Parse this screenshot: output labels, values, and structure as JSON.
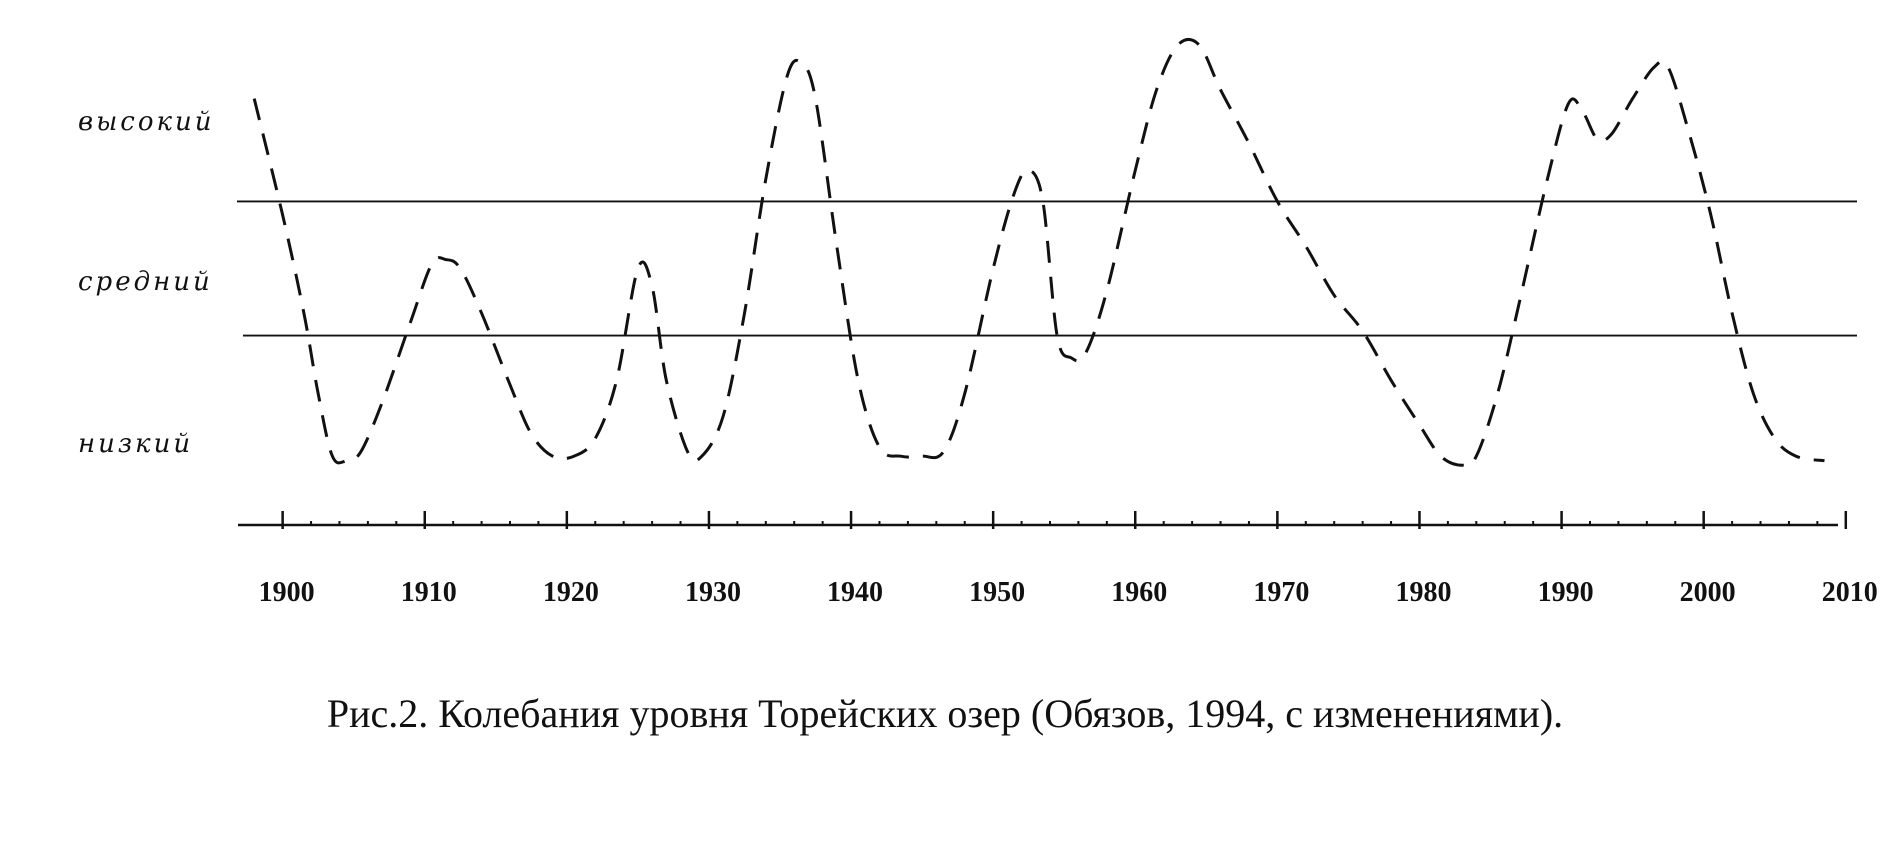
{
  "chart_data": {
    "type": "line",
    "title": "",
    "xlabel": "",
    "ylabel": "",
    "xlim": [
      1897,
      2011
    ],
    "ylim": [
      0,
      100
    ],
    "xticks": [
      1900,
      1910,
      1920,
      1930,
      1940,
      1950,
      1960,
      1970,
      1980,
      1990,
      2000,
      2010
    ],
    "level_bands": [
      {
        "label": "высокий"
      },
      {
        "label": "средний"
      },
      {
        "label": "низкий"
      }
    ],
    "band_boundaries": [
      65,
      35
    ],
    "grid": false,
    "legend": "none",
    "series": [
      {
        "line_style": "dashed",
        "color": "#111111",
        "points": [
          [
            1898,
            88
          ],
          [
            1900,
            62
          ],
          [
            1901.5,
            40
          ],
          [
            1902.5,
            22
          ],
          [
            1903.5,
            8
          ],
          [
            1904.5,
            7
          ],
          [
            1905.5,
            9
          ],
          [
            1907,
            20
          ],
          [
            1909,
            38
          ],
          [
            1910.5,
            51
          ],
          [
            1911.5,
            52
          ],
          [
            1912.5,
            50
          ],
          [
            1914,
            40
          ],
          [
            1916,
            24
          ],
          [
            1917.5,
            13
          ],
          [
            1919,
            8
          ],
          [
            1920.5,
            8
          ],
          [
            1922,
            12
          ],
          [
            1923.5,
            25
          ],
          [
            1925,
            50
          ],
          [
            1926,
            46
          ],
          [
            1927,
            25
          ],
          [
            1928.5,
            9
          ],
          [
            1929.5,
            8
          ],
          [
            1931,
            17
          ],
          [
            1932.5,
            40
          ],
          [
            1934,
            70
          ],
          [
            1935.5,
            93
          ],
          [
            1936.5,
            96
          ],
          [
            1937.5,
            88
          ],
          [
            1939,
            55
          ],
          [
            1940.5,
            25
          ],
          [
            1942,
            10
          ],
          [
            1943.5,
            8
          ],
          [
            1945,
            8
          ],
          [
            1946.5,
            9
          ],
          [
            1948,
            22
          ],
          [
            1950,
            50
          ],
          [
            1951.5,
            67
          ],
          [
            1952.5,
            72
          ],
          [
            1953.5,
            65
          ],
          [
            1954.5,
            35
          ],
          [
            1955.5,
            30
          ],
          [
            1956.5,
            31
          ],
          [
            1958,
            45
          ],
          [
            1960,
            72
          ],
          [
            1961.5,
            90
          ],
          [
            1963,
            100
          ],
          [
            1964.5,
            100
          ],
          [
            1966,
            90
          ],
          [
            1968,
            78
          ],
          [
            1970,
            65
          ],
          [
            1972,
            55
          ],
          [
            1974,
            44
          ],
          [
            1976,
            36
          ],
          [
            1978,
            25
          ],
          [
            1980,
            15
          ],
          [
            1981.5,
            8
          ],
          [
            1983,
            6
          ],
          [
            1984,
            8
          ],
          [
            1985.5,
            22
          ],
          [
            1987,
            42
          ],
          [
            1989,
            70
          ],
          [
            1990.5,
            87
          ],
          [
            1991.5,
            85
          ],
          [
            1992.5,
            79
          ],
          [
            1993.5,
            80
          ],
          [
            1995,
            88
          ],
          [
            1996.5,
            95
          ],
          [
            1997.5,
            95
          ],
          [
            1999,
            80
          ],
          [
            2000.5,
            62
          ],
          [
            2002,
            40
          ],
          [
            2003.5,
            22
          ],
          [
            2005,
            12
          ],
          [
            2006.5,
            8
          ],
          [
            2008.5,
            7
          ]
        ]
      }
    ]
  },
  "caption": "Рис.2. Колебания уровня Торейских озер (Обязов, 1994, с изменениями)."
}
